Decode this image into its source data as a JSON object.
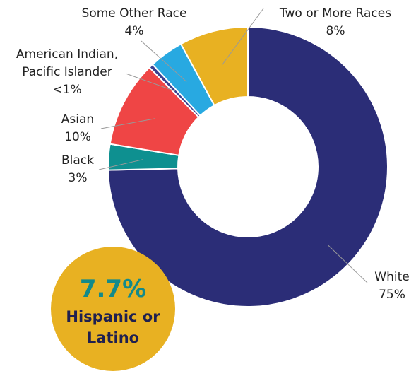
{
  "chart_data": {
    "type": "donut",
    "categories": [
      "White",
      "Black",
      "Asian",
      "American Indian, Pacific Islander",
      "Some Other Race",
      "Two or More Races"
    ],
    "values": [
      75,
      3,
      10,
      0.5,
      4,
      8
    ],
    "value_labels": [
      "75%",
      "3%",
      "10%",
      "<1%",
      "4%",
      "8%"
    ],
    "colors": [
      "#2b2d77",
      "#0e9090",
      "#ef4545",
      "#3a3f8f",
      "#28a9e1",
      "#e8b122"
    ],
    "callout": {
      "value": "7.7%",
      "label": "Hispanic or Latino"
    }
  }
}
